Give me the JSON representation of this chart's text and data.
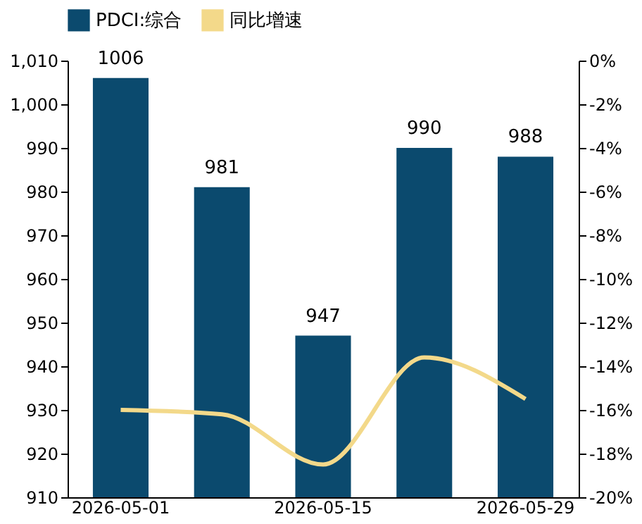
{
  "chart_data": {
    "type": "bar",
    "categories": [
      "2026-05-01",
      null,
      "2026-05-15",
      null,
      "2026-05-29"
    ],
    "series": [
      {
        "name": "PDCI:综合",
        "color": "#0b4a6e",
        "values": [
          1006,
          981,
          947,
          990,
          988
        ],
        "value_labels": [
          "1006",
          "981",
          "947",
          "990",
          "988"
        ]
      },
      {
        "name": "同比增速",
        "type": "line",
        "axis": "y2",
        "color": "#f3d98a",
        "values": [
          -16.0,
          -16.2,
          -18.5,
          -13.6,
          -15.5
        ]
      }
    ],
    "ylim": [
      910,
      1010
    ],
    "yticks": [
      910,
      920,
      930,
      940,
      950,
      960,
      970,
      980,
      990,
      {
        "value": 1000,
        "label": "1,000"
      },
      {
        "value": 1010,
        "label": "1,010"
      }
    ],
    "y2lim": [
      -20,
      0
    ],
    "y2ticks": [
      {
        "value": -20,
        "label": "-20%"
      },
      {
        "value": -18,
        "label": "-18%"
      },
      {
        "value": -16,
        "label": "-16%"
      },
      {
        "value": -14,
        "label": "-14%"
      },
      {
        "value": -12,
        "label": "-12%"
      },
      {
        "value": -10,
        "label": "-10%"
      },
      {
        "value": -8,
        "label": "-8%"
      },
      {
        "value": -6,
        "label": "-6%"
      },
      {
        "value": -4,
        "label": "-4%"
      },
      {
        "value": -2,
        "label": "-2%"
      },
      {
        "value": 0,
        "label": "0%"
      }
    ],
    "legend": "top",
    "grid": false
  }
}
